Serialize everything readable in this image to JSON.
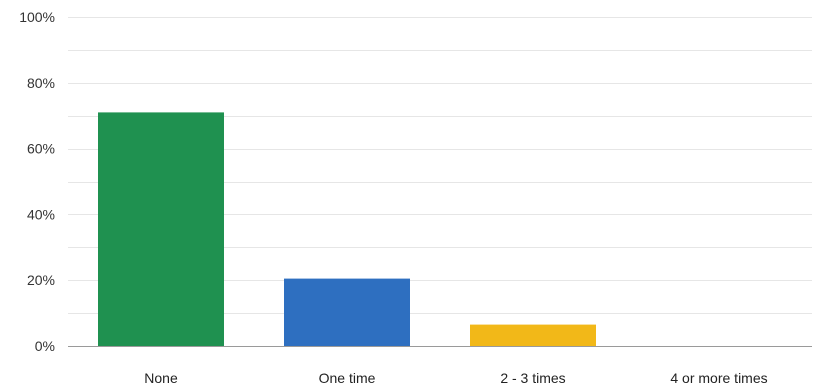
{
  "chart_data": {
    "type": "bar",
    "categories": [
      "None",
      "One time",
      "2 - 3 times",
      "4 or more times"
    ],
    "values": [
      71,
      20.5,
      6.5,
      0
    ],
    "colors": [
      "#1f9150",
      "#2e6fc0",
      "#f2b818",
      "#f2b818"
    ],
    "y_ticks": [
      "0%",
      "20%",
      "40%",
      "60%",
      "80%",
      "100%"
    ],
    "y_tick_values": [
      0,
      20,
      40,
      60,
      80,
      100
    ],
    "ylim": [
      0,
      100
    ],
    "grid": true,
    "legend": "none"
  }
}
